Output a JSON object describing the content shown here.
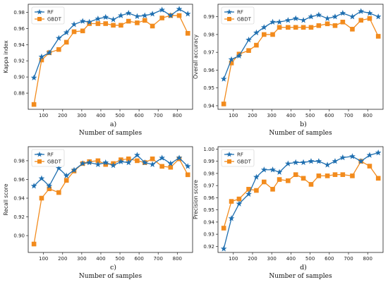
{
  "chart_data": [
    {
      "type": "line",
      "tag": "a)",
      "xlabel": "Number of samples",
      "ylabel": "Kappa index",
      "xlim": [
        20,
        880
      ],
      "ylim": [
        0.86,
        0.99
      ],
      "xticks": [
        100,
        200,
        300,
        400,
        500,
        600,
        700,
        800
      ],
      "yticks": [
        0.88,
        0.9,
        0.92,
        0.94,
        0.96,
        0.98
      ],
      "ytick_labels": [
        "0.88",
        "0.90",
        "0.92",
        "0.94",
        "0.96",
        "0.98"
      ],
      "legend": "top-left",
      "x": [
        50,
        90,
        130,
        180,
        220,
        260,
        305,
        340,
        385,
        425,
        465,
        505,
        545,
        590,
        630,
        670,
        720,
        765,
        810,
        855
      ],
      "series": [
        {
          "name": "RF",
          "color": "#1f6fb0",
          "marker": "star",
          "values": [
            0.899,
            0.925,
            0.93,
            0.948,
            0.955,
            0.965,
            0.969,
            0.968,
            0.972,
            0.974,
            0.971,
            0.976,
            0.979,
            0.975,
            0.976,
            0.978,
            0.983,
            0.976,
            0.984,
            0.978
          ]
        },
        {
          "name": "GBDT",
          "color": "#f28b1d",
          "marker": "square",
          "values": [
            0.866,
            0.921,
            0.93,
            0.934,
            0.943,
            0.956,
            0.957,
            0.966,
            0.966,
            0.966,
            0.964,
            0.964,
            0.969,
            0.967,
            0.97,
            0.963,
            0.973,
            0.976,
            0.976,
            0.954
          ]
        }
      ]
    },
    {
      "type": "line",
      "tag": "b)",
      "xlabel": "Number of samples",
      "ylabel": "Overall accuracy",
      "xlim": [
        20,
        880
      ],
      "ylim": [
        0.938,
        0.997
      ],
      "xticks": [
        100,
        200,
        300,
        400,
        500,
        600,
        700,
        800
      ],
      "yticks": [
        0.94,
        0.95,
        0.96,
        0.97,
        0.98,
        0.99
      ],
      "ytick_labels": [
        "0.94",
        "0.95",
        "0.96",
        "0.97",
        "0.98",
        "0.99"
      ],
      "legend": "top-left",
      "x": [
        50,
        90,
        130,
        180,
        220,
        260,
        305,
        340,
        385,
        425,
        465,
        505,
        545,
        590,
        630,
        670,
        720,
        765,
        810,
        855
      ],
      "series": [
        {
          "name": "RF",
          "color": "#1f6fb0",
          "marker": "star",
          "values": [
            0.955,
            0.966,
            0.968,
            0.977,
            0.981,
            0.984,
            0.987,
            0.987,
            0.988,
            0.989,
            0.988,
            0.99,
            0.991,
            0.989,
            0.99,
            0.992,
            0.99,
            0.993,
            0.992,
            0.99
          ]
        },
        {
          "name": "GBDT",
          "color": "#f28b1d",
          "marker": "square",
          "values": [
            0.941,
            0.964,
            0.969,
            0.971,
            0.974,
            0.98,
            0.98,
            0.984,
            0.984,
            0.984,
            0.984,
            0.984,
            0.985,
            0.986,
            0.985,
            0.987,
            0.983,
            0.988,
            0.989,
            0.979
          ]
        }
      ]
    },
    {
      "type": "line",
      "tag": "c)",
      "xlabel": "Number of samples",
      "ylabel": "Recall score",
      "xlim": [
        20,
        880
      ],
      "ylim": [
        0.882,
        0.995
      ],
      "xticks": [
        100,
        200,
        300,
        400,
        500,
        600,
        700,
        800
      ],
      "yticks": [
        0.9,
        0.92,
        0.94,
        0.96,
        0.98
      ],
      "ytick_labels": [
        "0.90",
        "0.92",
        "0.94",
        "0.96",
        "0.98"
      ],
      "legend": "top-left",
      "x": [
        50,
        90,
        130,
        180,
        220,
        260,
        305,
        340,
        385,
        425,
        465,
        505,
        545,
        590,
        630,
        670,
        720,
        765,
        810,
        855
      ],
      "series": [
        {
          "name": "RF",
          "color": "#1f6fb0",
          "marker": "star",
          "values": [
            0.953,
            0.961,
            0.953,
            0.972,
            0.964,
            0.97,
            0.977,
            0.978,
            0.976,
            0.978,
            0.975,
            0.979,
            0.978,
            0.986,
            0.978,
            0.976,
            0.983,
            0.977,
            0.983,
            0.974
          ]
        },
        {
          "name": "GBDT",
          "color": "#f28b1d",
          "marker": "square",
          "values": [
            0.891,
            0.94,
            0.95,
            0.946,
            0.959,
            0.969,
            0.977,
            0.979,
            0.98,
            0.976,
            0.977,
            0.981,
            0.982,
            0.98,
            0.978,
            0.982,
            0.974,
            0.973,
            0.982,
            0.965
          ]
        }
      ]
    },
    {
      "type": "line",
      "tag": "d)",
      "xlabel": "Number of samples",
      "ylabel": "Precision score",
      "xlim": [
        20,
        880
      ],
      "ylim": [
        0.915,
        1.002
      ],
      "xticks": [
        100,
        200,
        300,
        400,
        500,
        600,
        700,
        800
      ],
      "yticks": [
        0.92,
        0.93,
        0.94,
        0.95,
        0.96,
        0.97,
        0.98,
        0.99,
        1.0
      ],
      "ytick_labels": [
        "0.92",
        "0.93",
        "0.94",
        "0.95",
        "0.96",
        "0.97",
        "0.98",
        "0.99",
        "1.00"
      ],
      "legend": "top-left",
      "x": [
        50,
        90,
        130,
        180,
        220,
        260,
        305,
        340,
        385,
        425,
        465,
        505,
        545,
        590,
        630,
        670,
        720,
        765,
        810,
        855
      ],
      "series": [
        {
          "name": "RF",
          "color": "#1f6fb0",
          "marker": "star",
          "values": [
            0.918,
            0.943,
            0.955,
            0.963,
            0.977,
            0.983,
            0.983,
            0.981,
            0.988,
            0.989,
            0.989,
            0.99,
            0.99,
            0.987,
            0.99,
            0.993,
            0.994,
            0.99,
            0.995,
            0.997
          ]
        },
        {
          "name": "GBDT",
          "color": "#f28b1d",
          "marker": "square",
          "values": [
            0.935,
            0.957,
            0.959,
            0.967,
            0.966,
            0.973,
            0.967,
            0.975,
            0.974,
            0.979,
            0.976,
            0.971,
            0.978,
            0.978,
            0.979,
            0.979,
            0.978,
            0.99,
            0.986,
            0.976
          ]
        }
      ]
    }
  ]
}
